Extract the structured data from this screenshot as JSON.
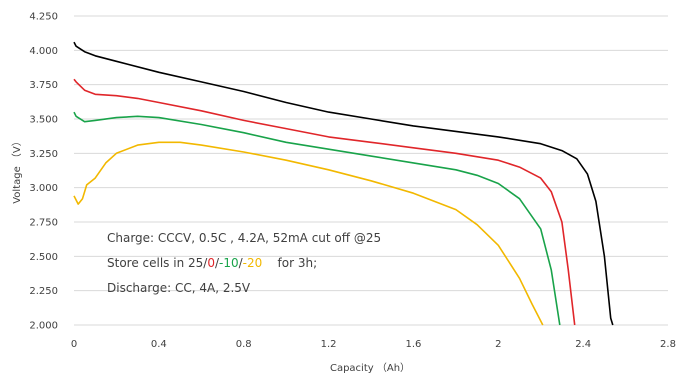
{
  "chart_data": {
    "type": "line",
    "xlabel": "Capacity （Ah）",
    "ylabel": "Voltage （V）",
    "xlim": [
      0,
      2.8
    ],
    "ylim": [
      2.0,
      4.25
    ],
    "x_ticks": [
      "0",
      "0.4",
      "0.8",
      "1.2",
      "1.6",
      "2",
      "2.4",
      "2.8"
    ],
    "y_ticks": [
      "2.000",
      "2.250",
      "2.500",
      "2.750",
      "3.000",
      "3.250",
      "3.500",
      "3.750",
      "4.000",
      "4.250"
    ],
    "grid": "horizontal",
    "legend": "none",
    "series": [
      {
        "color": "#000000",
        "points": [
          [
            0,
            4.06
          ],
          [
            0.01,
            4.03
          ],
          [
            0.05,
            3.99
          ],
          [
            0.1,
            3.96
          ],
          [
            0.2,
            3.92
          ],
          [
            0.4,
            3.84
          ],
          [
            0.6,
            3.77
          ],
          [
            0.8,
            3.7
          ],
          [
            1.0,
            3.62
          ],
          [
            1.2,
            3.55
          ],
          [
            1.4,
            3.5
          ],
          [
            1.6,
            3.45
          ],
          [
            1.8,
            3.41
          ],
          [
            2.0,
            3.37
          ],
          [
            2.2,
            3.32
          ],
          [
            2.3,
            3.27
          ],
          [
            2.37,
            3.21
          ],
          [
            2.42,
            3.1
          ],
          [
            2.46,
            2.9
          ],
          [
            2.5,
            2.5
          ],
          [
            2.53,
            2.05
          ],
          [
            2.54,
            2.0
          ]
        ]
      },
      {
        "color": "#e0262a",
        "points": [
          [
            0,
            3.79
          ],
          [
            0.01,
            3.77
          ],
          [
            0.05,
            3.71
          ],
          [
            0.1,
            3.68
          ],
          [
            0.2,
            3.67
          ],
          [
            0.3,
            3.65
          ],
          [
            0.4,
            3.62
          ],
          [
            0.6,
            3.56
          ],
          [
            0.8,
            3.49
          ],
          [
            1.0,
            3.43
          ],
          [
            1.2,
            3.37
          ],
          [
            1.4,
            3.33
          ],
          [
            1.6,
            3.29
          ],
          [
            1.8,
            3.25
          ],
          [
            2.0,
            3.2
          ],
          [
            2.1,
            3.15
          ],
          [
            2.2,
            3.07
          ],
          [
            2.25,
            2.97
          ],
          [
            2.3,
            2.75
          ],
          [
            2.33,
            2.4
          ],
          [
            2.36,
            2.0
          ]
        ]
      },
      {
        "color": "#19a34a",
        "points": [
          [
            0,
            3.55
          ],
          [
            0.01,
            3.52
          ],
          [
            0.05,
            3.48
          ],
          [
            0.1,
            3.49
          ],
          [
            0.2,
            3.51
          ],
          [
            0.3,
            3.52
          ],
          [
            0.4,
            3.51
          ],
          [
            0.6,
            3.46
          ],
          [
            0.8,
            3.4
          ],
          [
            1.0,
            3.33
          ],
          [
            1.2,
            3.28
          ],
          [
            1.4,
            3.23
          ],
          [
            1.6,
            3.18
          ],
          [
            1.8,
            3.13
          ],
          [
            1.9,
            3.09
          ],
          [
            2.0,
            3.03
          ],
          [
            2.1,
            2.92
          ],
          [
            2.2,
            2.7
          ],
          [
            2.25,
            2.4
          ],
          [
            2.29,
            2.0
          ]
        ]
      },
      {
        "color": "#f2b800",
        "points": [
          [
            0,
            2.94
          ],
          [
            0.02,
            2.88
          ],
          [
            0.04,
            2.92
          ],
          [
            0.06,
            3.02
          ],
          [
            0.1,
            3.07
          ],
          [
            0.15,
            3.18
          ],
          [
            0.2,
            3.25
          ],
          [
            0.3,
            3.31
          ],
          [
            0.4,
            3.33
          ],
          [
            0.5,
            3.33
          ],
          [
            0.6,
            3.31
          ],
          [
            0.8,
            3.26
          ],
          [
            1.0,
            3.2
          ],
          [
            1.2,
            3.13
          ],
          [
            1.4,
            3.05
          ],
          [
            1.6,
            2.96
          ],
          [
            1.8,
            2.84
          ],
          [
            1.9,
            2.73
          ],
          [
            2.0,
            2.58
          ],
          [
            2.1,
            2.34
          ],
          [
            2.16,
            2.15
          ],
          [
            2.21,
            2.0
          ]
        ]
      }
    ],
    "annotations": {
      "charge": "Charge: CCCV, 0.5C , 4.2A, 52mA cut off @25",
      "store_prefix": "Store cells in 25",
      "store_sep1": "/",
      "store_t2": "0",
      "store_sep2": "/",
      "store_t3": "-10",
      "store_sep3": "/",
      "store_t4": "-20",
      "store_suffix": "    for 3h;",
      "discharge": "Discharge: CC, 4A, 2.5V"
    }
  }
}
